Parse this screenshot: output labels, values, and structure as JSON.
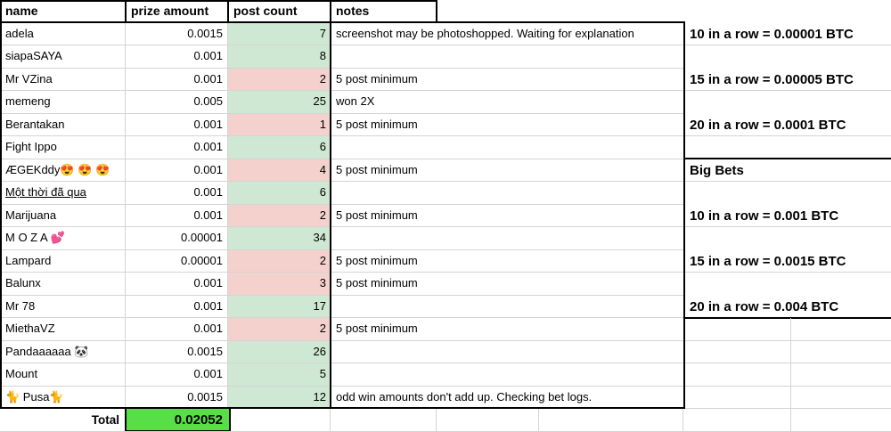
{
  "colors": {
    "count_green": "#cfe8d4",
    "count_pink": "#f5d1cd",
    "total_green": "#58de49",
    "gridline": "#d4d4d4",
    "border_black": "#000000"
  },
  "table": {
    "headers": {
      "name": "name",
      "prize": "prize amount",
      "count": "post count",
      "notes": "notes"
    },
    "rows": [
      {
        "name": "adela",
        "prize": "0.0015",
        "count": "7",
        "status": "green",
        "note": "screenshot may be photoshopped. Waiting for explanation",
        "underline": false
      },
      {
        "name": "siapaSAYA",
        "prize": "0.001",
        "count": "8",
        "status": "green",
        "note": "",
        "underline": false
      },
      {
        "name": "Mr VZina",
        "prize": "0.001",
        "count": "2",
        "status": "pink",
        "note": "5 post minimum",
        "underline": false
      },
      {
        "name": "memeng",
        "prize": "0.005",
        "count": "25",
        "status": "green",
        "note": "won 2X",
        "underline": false
      },
      {
        "name": "Berantakan",
        "prize": "0.001",
        "count": "1",
        "status": "pink",
        "note": "5 post minimum",
        "underline": false
      },
      {
        "name": "Fight Ippo",
        "prize": "0.001",
        "count": "6",
        "status": "green",
        "note": "",
        "underline": false
      },
      {
        "name": "ÆGEKddy😍 😍 😍",
        "prize": "0.001",
        "count": "4",
        "status": "pink",
        "note": "5 post minimum",
        "underline": false
      },
      {
        "name": "Một thời đã qua",
        "prize": "0.001",
        "count": "6",
        "status": "green",
        "note": "",
        "underline": true
      },
      {
        "name": "Marijuana",
        "prize": "0.001",
        "count": "2",
        "status": "pink",
        "note": "5 post minimum",
        "underline": false
      },
      {
        "name": "M O Z A 💕",
        "prize": "0.00001",
        "count": "34",
        "status": "green",
        "note": "",
        "underline": false
      },
      {
        "name": "Lampard",
        "prize": "0.00001",
        "count": "2",
        "status": "pink",
        "note": "5 post minimum",
        "underline": false
      },
      {
        "name": "Balunx",
        "prize": "0.001",
        "count": "3",
        "status": "pink",
        "note": "5 post minimum",
        "underline": false
      },
      {
        "name": "Mr 78",
        "prize": "0.001",
        "count": "17",
        "status": "green",
        "note": "",
        "underline": false
      },
      {
        "name": "MiethaVZ",
        "prize": "0.001",
        "count": "2",
        "status": "pink",
        "note": "5 post minimum",
        "underline": false
      },
      {
        "name": "Pandaaaaaa 🐼",
        "prize": "0.0015",
        "count": "26",
        "status": "green",
        "note": "",
        "underline": false
      },
      {
        "name": "Mount",
        "prize": "0.001",
        "count": "5",
        "status": "green",
        "note": "",
        "underline": false
      },
      {
        "name": "🐈 Pusa🐈",
        "prize": "0.0015",
        "count": "12",
        "status": "green",
        "note": "odd win amounts don't add up. Checking bet logs.",
        "underline": false
      }
    ],
    "total_label": "Total",
    "total_value": "0.02052"
  },
  "right_panel": {
    "entries": [
      {
        "label": "10 in a row = 0.00001 BTC",
        "row": 2
      },
      {
        "label": "15 in a row = 0.00005 BTC",
        "row": 4
      },
      {
        "label": "20 in a row = 0.0001 BTC",
        "row": 6
      },
      {
        "label": "Big Bets",
        "row": 8
      },
      {
        "label": "10 in a row = 0.001 BTC",
        "row": 10
      },
      {
        "label": "15 in a row = 0.0015 BTC",
        "row": 12
      },
      {
        "label": "20 in a row = 0.004 BTC",
        "row": 14
      }
    ]
  }
}
